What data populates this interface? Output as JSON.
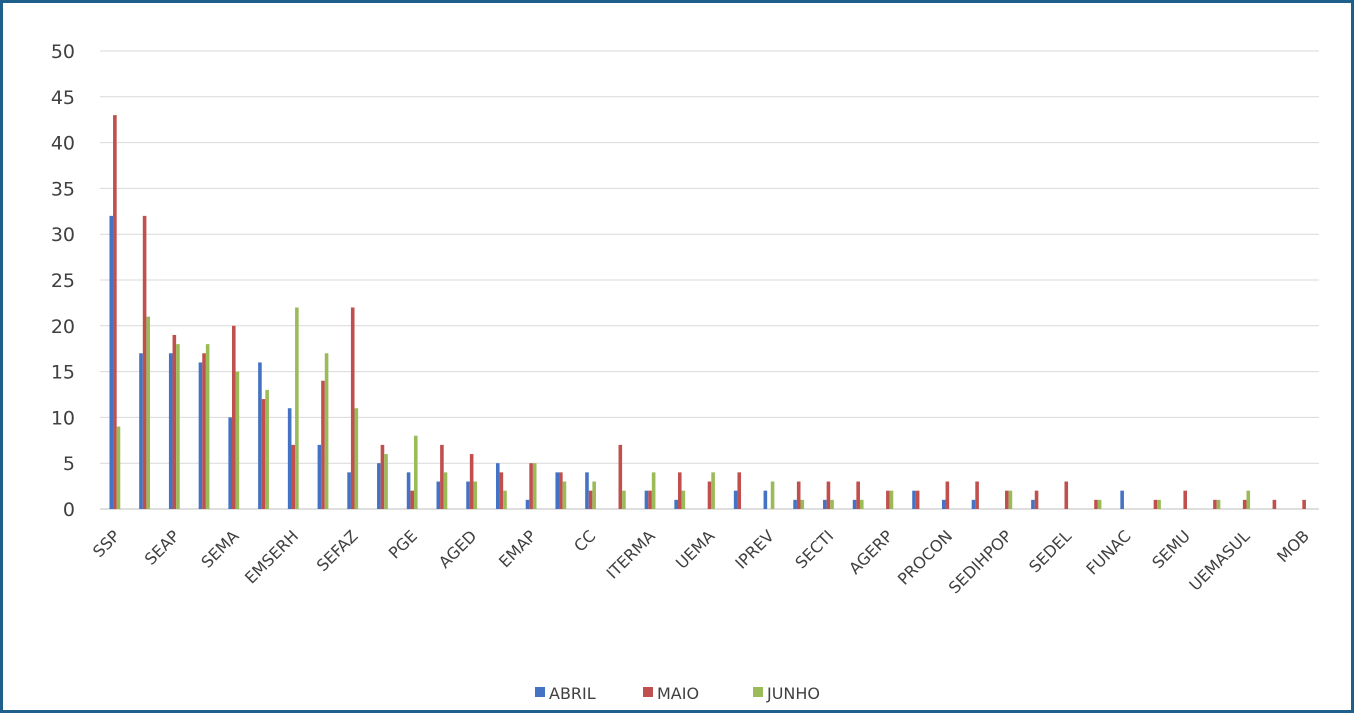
{
  "chart_data": {
    "type": "bar",
    "title": "",
    "xlabel": "",
    "ylabel": "",
    "ylim": [
      0,
      50
    ],
    "yticks": [
      "0",
      "5",
      "10",
      "15",
      "20",
      "25",
      "30",
      "35",
      "40",
      "45",
      "50"
    ],
    "grid": true,
    "legend_position": "bottom",
    "categories": [
      "SSP",
      "",
      "SEAP",
      "",
      "SEMA",
      "",
      "EMSERH",
      "",
      "SEFAZ",
      "",
      "PGE",
      "",
      "AGED",
      "",
      "EMAP",
      "",
      "CC",
      "",
      "ITERMA",
      "",
      "UEMA",
      "",
      "IPREV",
      "",
      "SECTI",
      "",
      "AGERP",
      "",
      "PROCON",
      "",
      "SEDIHPOP",
      "",
      "SEDEL",
      "",
      "FUNAC",
      "",
      "SEMU",
      "",
      "UEMASUL",
      "",
      "MOB"
    ],
    "series": [
      {
        "name": "ABRIL",
        "color": "#4472c4",
        "values": [
          32,
          17,
          17,
          16,
          10,
          16,
          11,
          7,
          4,
          5,
          4,
          3,
          3,
          5,
          1,
          4,
          4,
          0,
          2,
          1,
          0,
          2,
          2,
          1,
          1,
          1,
          0,
          2,
          1,
          1,
          0,
          1,
          0,
          0,
          2,
          0,
          0,
          0,
          0,
          0,
          0
        ]
      },
      {
        "name": "MAIO",
        "color": "#c0504d",
        "values": [
          43,
          32,
          19,
          17,
          20,
          12,
          7,
          14,
          22,
          7,
          2,
          7,
          6,
          4,
          5,
          4,
          2,
          7,
          2,
          4,
          3,
          4,
          0,
          3,
          3,
          3,
          2,
          2,
          3,
          3,
          2,
          2,
          3,
          1,
          0,
          1,
          2,
          1,
          1,
          1,
          1
        ]
      },
      {
        "name": "JUNHO",
        "color": "#9bbb59",
        "values": [
          9,
          21,
          18,
          18,
          15,
          13,
          22,
          17,
          11,
          6,
          8,
          4,
          3,
          2,
          5,
          3,
          3,
          2,
          4,
          2,
          4,
          0,
          3,
          1,
          1,
          1,
          2,
          0,
          0,
          0,
          2,
          0,
          0,
          1,
          0,
          1,
          0,
          1,
          2,
          0,
          0
        ]
      }
    ]
  }
}
